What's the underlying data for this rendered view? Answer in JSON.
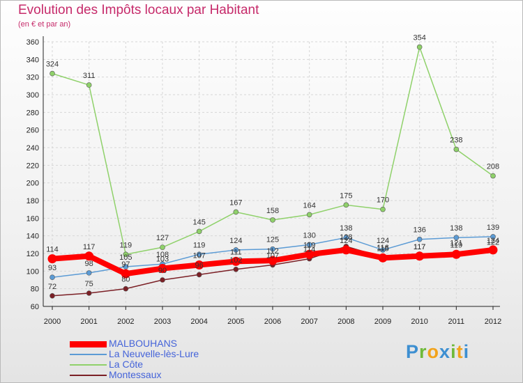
{
  "chart_data": {
    "type": "line",
    "title": "Evolution des Impôts locaux par Habitant",
    "subtitle": "(en € et par an)",
    "x": [
      "2000",
      "2001",
      "2002",
      "2003",
      "2004",
      "2005",
      "2006",
      "2007",
      "2008",
      "2009",
      "2010",
      "2011",
      "2012"
    ],
    "ylim": [
      60,
      360
    ],
    "yticks": [
      60,
      80,
      100,
      120,
      140,
      160,
      180,
      200,
      220,
      240,
      260,
      280,
      300,
      320,
      340,
      360
    ],
    "grid": true,
    "series": [
      {
        "name": "MALBOUHANS",
        "color": "#ff0000",
        "values": [
          114,
          117,
          97,
          103,
          107,
          111,
          112,
          119,
          124,
          115,
          117,
          119,
          124
        ],
        "labels": [
          "114",
          "117",
          "97",
          "103",
          "107",
          "111",
          "112",
          "119",
          "124",
          "115",
          "117",
          "119",
          "124"
        ]
      },
      {
        "name": "La Neuvelle-lès-Lure",
        "color": "#5b9bd5",
        "values": [
          93,
          98,
          105,
          108,
          119,
          124,
          125,
          130,
          138,
          124,
          136,
          138,
          139
        ],
        "labels": [
          "93",
          "98",
          "105",
          "108",
          "119",
          "124",
          "125",
          "130",
          "138",
          "124",
          "136",
          "138",
          "139"
        ]
      },
      {
        "name": "La Côte",
        "color": "#8fd16a",
        "values": [
          324,
          311,
          119,
          127,
          145,
          167,
          158,
          164,
          175,
          170,
          354,
          238,
          208
        ],
        "labels": [
          "324",
          "311",
          "119",
          "127",
          "145",
          "167",
          "158",
          "164",
          "175",
          "170",
          "354",
          "238",
          "208"
        ]
      },
      {
        "name": "Montessaux",
        "color": "#7b1f25",
        "values": [
          72,
          75,
          80,
          90,
          96,
          102,
          107,
          114,
          128,
          116,
          117,
          121,
          122
        ],
        "labels": [
          "72",
          "75",
          "80",
          "90",
          "96",
          "102",
          "107",
          "114",
          "128",
          "116",
          "117",
          "121",
          "122"
        ]
      }
    ]
  },
  "brand": "Proxiti",
  "colors": {
    "title": "#c62a6a",
    "legend_text": "#4463d9",
    "axis": "#222222",
    "grid": "#d6d6d6"
  }
}
